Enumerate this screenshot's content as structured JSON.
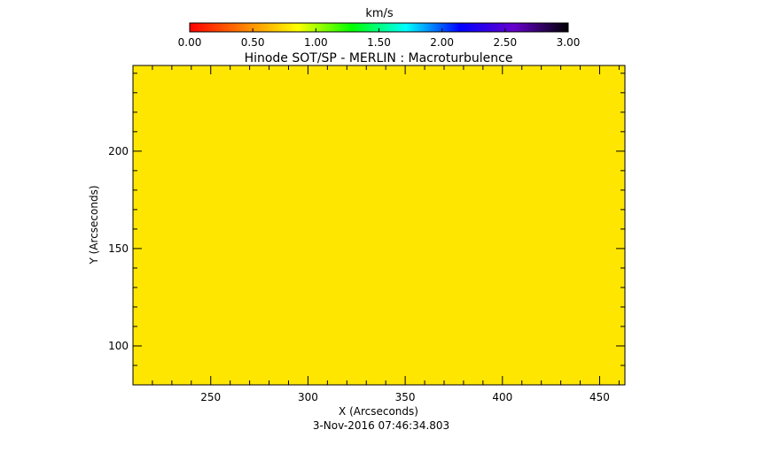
{
  "chart_data": {
    "type": "heatmap",
    "title": "Hinode SOT/SP - MERLIN : Macroturbulence",
    "xlabel": "X (Arcseconds)",
    "ylabel": "Y (Arcseconds)",
    "footer": "3-Nov-2016 07:46:34.803",
    "xlim": [
      210,
      463
    ],
    "ylim": [
      80,
      244
    ],
    "x_major_ticks": [
      250,
      300,
      350,
      400,
      450
    ],
    "y_major_ticks": [
      100,
      150,
      200
    ],
    "x_minor_step": 10,
    "y_minor_step": 10,
    "grid": false,
    "fill_color": "#ffe600",
    "colorbar": {
      "label": "km/s",
      "range": [
        0,
        3
      ],
      "tick_values": [
        0,
        0.5,
        1,
        1.5,
        2,
        2.5,
        3
      ],
      "tick_labels": [
        "0.00",
        "0.50",
        "1.00",
        "1.50",
        "2.00",
        "2.50",
        "3.00"
      ],
      "colors": [
        "#ff0000",
        "#ff8000",
        "#ffff00",
        "#00ff00",
        "#00ffff",
        "#0000ff",
        "#6600cc",
        "#000000"
      ]
    }
  }
}
